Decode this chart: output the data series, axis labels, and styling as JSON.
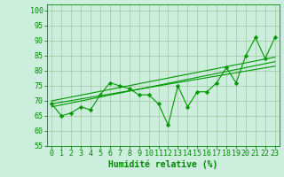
{
  "xlabel": "Humidité relative (%)",
  "bg_color": "#cceedd",
  "grid_color": "#aaccaa",
  "line_color": "#009900",
  "marker_color": "#009900",
  "xlim": [
    -0.5,
    23.5
  ],
  "ylim": [
    55,
    102
  ],
  "yticks": [
    55,
    60,
    65,
    70,
    75,
    80,
    85,
    90,
    95,
    100
  ],
  "xticks": [
    0,
    1,
    2,
    3,
    4,
    5,
    6,
    7,
    8,
    9,
    10,
    11,
    12,
    13,
    14,
    15,
    16,
    17,
    18,
    19,
    20,
    21,
    22,
    23
  ],
  "scatter_x": [
    0,
    1,
    2,
    3,
    4,
    5,
    6,
    7,
    8,
    9,
    10,
    11,
    12,
    13,
    14,
    15,
    16,
    17,
    18,
    19,
    20,
    21,
    22,
    23
  ],
  "scatter_y": [
    69,
    65,
    66,
    68,
    67,
    72,
    76,
    75,
    74,
    72,
    72,
    69,
    62,
    75,
    68,
    73,
    73,
    76,
    81,
    76,
    85,
    91,
    84,
    91
  ],
  "reg_lines": [
    {
      "x0": 0,
      "x1": 23,
      "y0": 69.0,
      "y1": 81.5
    },
    {
      "x0": 0,
      "x1": 23,
      "y0": 68.0,
      "y1": 83.0
    },
    {
      "x0": 0,
      "x1": 23,
      "y0": 70.0,
      "y1": 84.5
    }
  ],
  "xlabel_fontsize": 7,
  "tick_fontsize": 6,
  "axis_color": "#008800"
}
